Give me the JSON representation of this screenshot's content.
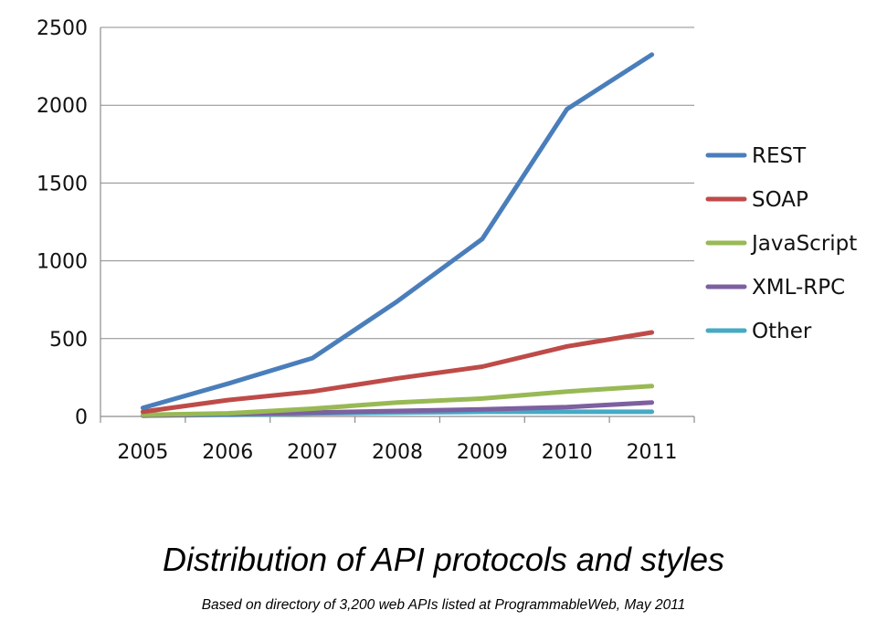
{
  "chart_data": {
    "type": "line",
    "title": "Distribution of API protocols and styles",
    "subtitle": "Based on directory of 3,200 web APIs listed at ProgrammableWeb, May 2011",
    "xlabel": "",
    "ylabel": "",
    "categories": [
      "2005",
      "2006",
      "2007",
      "2008",
      "2009",
      "2010",
      "2011"
    ],
    "ylim": [
      0,
      2500
    ],
    "yticks": [
      "0",
      "500",
      "1000",
      "1500",
      "2000",
      "2500"
    ],
    "grid": true,
    "legend_position": "right",
    "series": [
      {
        "name": "REST",
        "color": "#4a7ebb",
        "values": [
          55,
          210,
          375,
          740,
          1140,
          1975,
          2325
        ]
      },
      {
        "name": "SOAP",
        "color": "#be4b48",
        "values": [
          30,
          105,
          160,
          245,
          320,
          450,
          540
        ]
      },
      {
        "name": "JavaScript",
        "color": "#98b954",
        "values": [
          10,
          20,
          50,
          90,
          115,
          160,
          195
        ]
      },
      {
        "name": "XML-RPC",
        "color": "#7d60a0",
        "values": [
          5,
          15,
          25,
          35,
          45,
          60,
          90
        ]
      },
      {
        "name": "Other",
        "color": "#46aac5",
        "values": [
          5,
          10,
          20,
          25,
          30,
          30,
          30
        ]
      }
    ]
  }
}
